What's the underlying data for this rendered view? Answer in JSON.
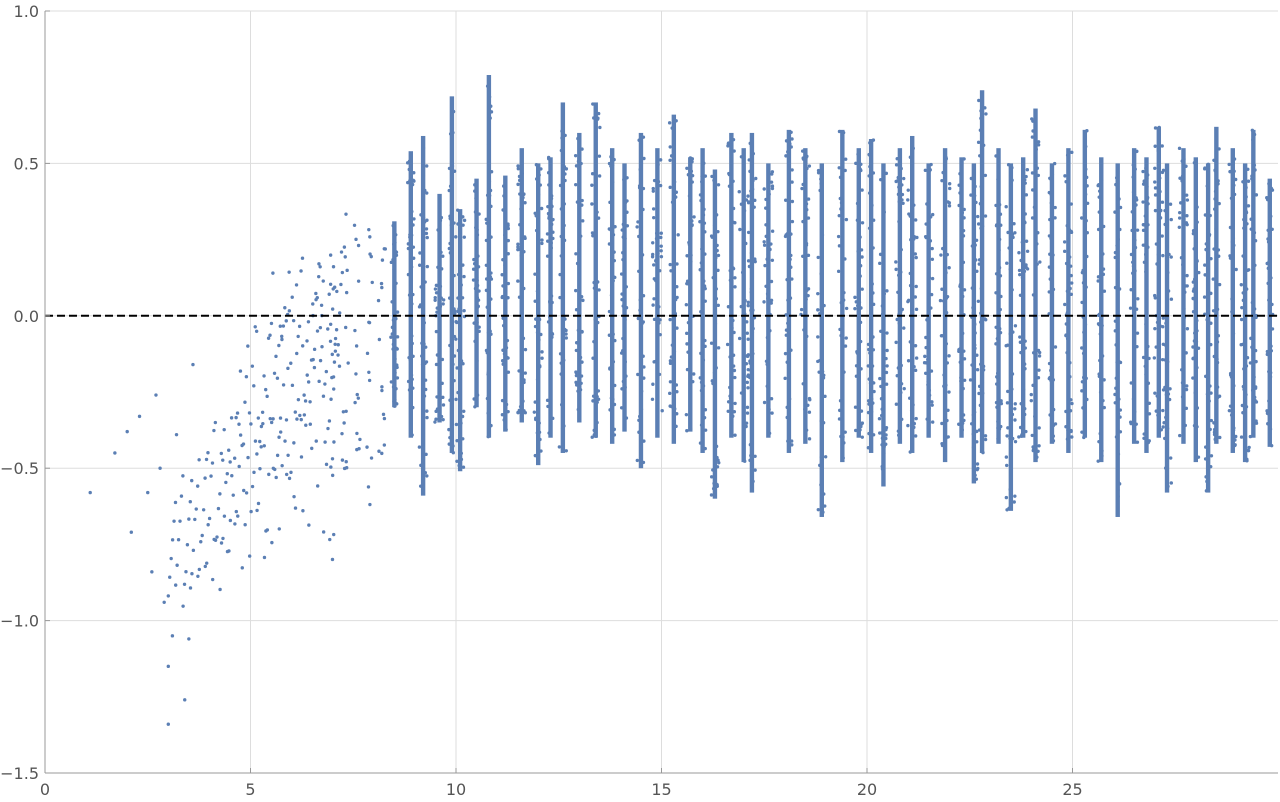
{
  "chart_data": {
    "type": "scatter",
    "title": "",
    "xlabel": "",
    "ylabel": "",
    "xlim": [
      0,
      30
    ],
    "ylim": [
      -1.5,
      1.0
    ],
    "x_ticks": [
      0,
      5,
      10,
      15,
      20,
      25
    ],
    "x_tick_labels": [
      "0",
      "5",
      "10",
      "15",
      "20",
      "25"
    ],
    "y_ticks": [
      1.0,
      0.5,
      0.0,
      -0.5,
      -1.0,
      -1.5
    ],
    "y_tick_labels": [
      "1.0",
      "0.5",
      "0.0",
      "−0.5",
      "−1.0",
      "−1.5"
    ],
    "grid": true,
    "reference_line": {
      "y": 0.0,
      "style": "dashed",
      "color": "#000000"
    },
    "series": [
      {
        "color": "#5b7fb4",
        "description_points": "dense oscillating point cloud; sparse for x<7, dense x>=7",
        "sample_points": [
          [
            1.1,
            -0.58
          ],
          [
            1.7,
            -0.45
          ],
          [
            2.0,
            -0.38
          ],
          [
            2.1,
            -0.71
          ],
          [
            2.3,
            -0.33
          ],
          [
            2.5,
            -0.58
          ],
          [
            2.6,
            -0.84
          ],
          [
            2.7,
            -0.26
          ],
          [
            2.8,
            -0.5
          ],
          [
            2.9,
            -0.94
          ],
          [
            3.0,
            -1.15
          ],
          [
            3.0,
            -1.34
          ],
          [
            3.1,
            -1.05
          ],
          [
            3.2,
            -0.6
          ],
          [
            3.3,
            -0.39
          ],
          [
            3.4,
            -1.26
          ],
          [
            3.5,
            -1.06
          ],
          [
            3.6,
            -0.16
          ],
          [
            3.7,
            -0.48
          ],
          [
            3.9,
            -0.13
          ],
          [
            4.1,
            -0.12
          ],
          [
            4.3,
            -0.95
          ],
          [
            4.4,
            -1.01
          ],
          [
            4.5,
            -0.1
          ],
          [
            4.8,
            -1.02
          ],
          [
            4.9,
            -0.74
          ],
          [
            5.1,
            -0.96
          ],
          [
            5.3,
            -1.04
          ],
          [
            5.4,
            0.07
          ],
          [
            5.7,
            -1.07
          ],
          [
            6.1,
            -0.21
          ],
          [
            6.4,
            0.16
          ],
          [
            6.8,
            -0.58
          ],
          [
            7.0,
            -0.83
          ],
          [
            7.1,
            0.11
          ],
          [
            7.3,
            0.35
          ],
          [
            7.6,
            0.38
          ],
          [
            7.9,
            -0.65
          ],
          [
            8.2,
            -0.56
          ],
          [
            8.5,
            0.31
          ],
          [
            8.9,
            0.54
          ],
          [
            9.2,
            0.59
          ],
          [
            9.3,
            -0.59
          ],
          [
            9.9,
            0.72
          ],
          [
            10.1,
            -0.51
          ],
          [
            10.8,
            0.79
          ],
          [
            11.2,
            -0.38
          ],
          [
            12.0,
            -0.49
          ],
          [
            12.6,
            0.7
          ],
          [
            13.4,
            0.7
          ],
          [
            14.5,
            -0.5
          ],
          [
            15.3,
            0.66
          ],
          [
            16.3,
            -0.6
          ],
          [
            17.2,
            -0.58
          ],
          [
            18.1,
            0.61
          ],
          [
            18.9,
            -0.66
          ],
          [
            19.4,
            0.61
          ],
          [
            20.4,
            -0.56
          ],
          [
            21.1,
            0.59
          ],
          [
            22.6,
            -0.55
          ],
          [
            22.8,
            0.74
          ],
          [
            23.5,
            -0.64
          ],
          [
            24.1,
            0.68
          ],
          [
            25.3,
            0.61
          ],
          [
            26.1,
            -0.66
          ],
          [
            27.1,
            0.62
          ],
          [
            27.3,
            -0.58
          ],
          [
            28.5,
            0.62
          ],
          [
            28.3,
            -0.58
          ],
          [
            29.4,
            0.61
          ],
          [
            29.8,
            -0.43
          ]
        ]
      }
    ]
  }
}
